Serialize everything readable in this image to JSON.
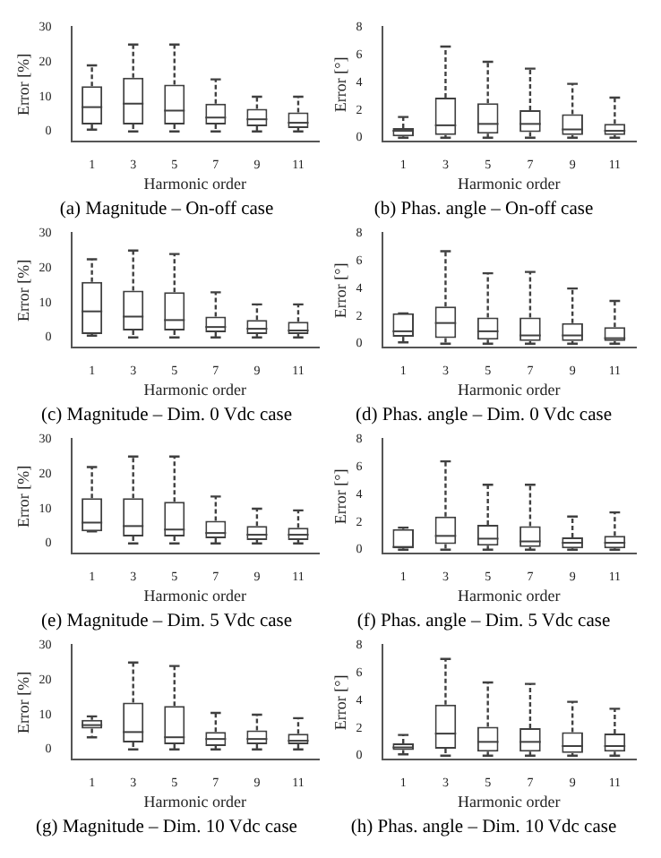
{
  "chart_data": [
    {
      "type": "box",
      "title": "(a) Magnitude – On-off case",
      "xlabel": "Harmonic order",
      "ylabel": "Error [%]",
      "categories": [
        "1",
        "3",
        "5",
        "7",
        "9",
        "11"
      ],
      "ylim": [
        -3,
        30
      ],
      "yticks": [
        0,
        10,
        20,
        30
      ],
      "series": [
        {
          "color": "#404040",
          "boxes": [
            {
              "low": 0.5,
              "q1": 2,
              "median": 7,
              "q3": 13,
              "high": 19
            },
            {
              "low": 0,
              "q1": 2,
              "median": 8,
              "q3": 15.5,
              "high": 25
            },
            {
              "low": 0,
              "q1": 2,
              "median": 6,
              "q3": 13.5,
              "high": 25
            },
            {
              "low": 0,
              "q1": 2,
              "median": 4,
              "q3": 8,
              "high": 15
            },
            {
              "low": 0,
              "q1": 1.5,
              "median": 3.5,
              "q3": 6.5,
              "high": 10
            },
            {
              "low": 0,
              "q1": 1,
              "median": 2.5,
              "q3": 5.5,
              "high": 10
            }
          ]
        }
      ]
    },
    {
      "type": "box",
      "title": "(b) Phas. angle – On-off case",
      "xlabel": "Harmonic order",
      "ylabel": "Error [°]",
      "categories": [
        "1",
        "3",
        "5",
        "7",
        "9",
        "11"
      ],
      "ylim": [
        -0.3,
        8
      ],
      "yticks": [
        0,
        2,
        4,
        6,
        8
      ],
      "series": [
        {
          "color": "#404040",
          "boxes": [
            {
              "low": 0,
              "q1": 0.1,
              "median": 0.5,
              "q3": 0.7,
              "high": 1.5
            },
            {
              "low": 0,
              "q1": 0.2,
              "median": 0.9,
              "q3": 2.9,
              "high": 6.6
            },
            {
              "low": 0,
              "q1": 0.3,
              "median": 1,
              "q3": 2.5,
              "high": 5.5
            },
            {
              "low": 0,
              "q1": 0.4,
              "median": 1,
              "q3": 2,
              "high": 5
            },
            {
              "low": 0,
              "q1": 0.2,
              "median": 0.6,
              "q3": 1.7,
              "high": 3.9
            },
            {
              "low": 0,
              "q1": 0.2,
              "median": 0.5,
              "q3": 1,
              "high": 2.9
            }
          ]
        }
      ]
    },
    {
      "type": "box",
      "title": "(c) Magnitude – Dim. 0 Vdc case",
      "xlabel": "Harmonic order",
      "ylabel": "Error [%]",
      "categories": [
        "1",
        "3",
        "5",
        "7",
        "9",
        "11"
      ],
      "ylim": [
        -3,
        30
      ],
      "yticks": [
        0,
        10,
        20,
        30
      ],
      "series": [
        {
          "color": "#404040",
          "boxes": [
            {
              "low": 0.5,
              "q1": 1,
              "median": 7.5,
              "q3": 16,
              "high": 22.5
            },
            {
              "low": 0,
              "q1": 2,
              "median": 6,
              "q3": 13.5,
              "high": 25
            },
            {
              "low": 0,
              "q1": 2,
              "median": 5,
              "q3": 13,
              "high": 24
            },
            {
              "low": 0,
              "q1": 1.5,
              "median": 3,
              "q3": 6,
              "high": 13
            },
            {
              "low": 0,
              "q1": 1,
              "median": 2.5,
              "q3": 5,
              "high": 9.5
            },
            {
              "low": 0,
              "q1": 1,
              "median": 2,
              "q3": 4.5,
              "high": 9.5
            }
          ]
        }
      ]
    },
    {
      "type": "box",
      "title": "(d) Phas. angle – Dim. 0 Vdc case",
      "xlabel": "Harmonic order",
      "ylabel": "Error [°]",
      "categories": [
        "1",
        "3",
        "5",
        "7",
        "9",
        "11"
      ],
      "ylim": [
        -0.3,
        8
      ],
      "yticks": [
        0,
        2,
        4,
        6,
        8
      ],
      "series": [
        {
          "color": "#404040",
          "boxes": [
            {
              "low": 0.1,
              "q1": 0.5,
              "median": 0.9,
              "q3": 2.2,
              "high": 2.2
            },
            {
              "low": 0,
              "q1": 0.4,
              "median": 1.5,
              "q3": 2.7,
              "high": 6.7
            },
            {
              "low": 0,
              "q1": 0.3,
              "median": 0.9,
              "q3": 1.9,
              "high": 5.1
            },
            {
              "low": 0,
              "q1": 0.2,
              "median": 0.6,
              "q3": 1.9,
              "high": 5.2
            },
            {
              "low": 0,
              "q1": 0.2,
              "median": 0.6,
              "q3": 1.5,
              "high": 4
            },
            {
              "low": 0,
              "q1": 0.2,
              "median": 0.4,
              "q3": 1.2,
              "high": 3.1
            }
          ]
        }
      ]
    },
    {
      "type": "box",
      "title": "(e) Magnitude – Dim. 5 Vdc case",
      "xlabel": "Harmonic order",
      "ylabel": "Error [%]",
      "categories": [
        "1",
        "3",
        "5",
        "7",
        "9",
        "11"
      ],
      "ylim": [
        -3,
        30
      ],
      "yticks": [
        0,
        10,
        20,
        30
      ],
      "series": [
        {
          "color": "#404040",
          "boxes": [
            {
              "low": 3.5,
              "q1": 3.5,
              "median": 6,
              "q3": 13,
              "high": 22
            },
            {
              "low": 0,
              "q1": 2,
              "median": 5,
              "q3": 13,
              "high": 25
            },
            {
              "low": 0,
              "q1": 2,
              "median": 4,
              "q3": 12,
              "high": 25
            },
            {
              "low": 0,
              "q1": 1.5,
              "median": 3,
              "q3": 6.5,
              "high": 13.5
            },
            {
              "low": 0,
              "q1": 1,
              "median": 2.5,
              "q3": 5,
              "high": 10
            },
            {
              "low": 0,
              "q1": 1,
              "median": 2.5,
              "q3": 4.5,
              "high": 9.5
            }
          ]
        }
      ]
    },
    {
      "type": "box",
      "title": "(f) Phas. angle – Dim. 5 Vdc case",
      "xlabel": "Harmonic order",
      "ylabel": "Error [°]",
      "categories": [
        "1",
        "3",
        "5",
        "7",
        "9",
        "11"
      ],
      "ylim": [
        -0.3,
        8
      ],
      "yticks": [
        0,
        2,
        4,
        6,
        8
      ],
      "series": [
        {
          "color": "#404040",
          "boxes": [
            {
              "low": 0,
              "q1": 0.1,
              "median": 0.2,
              "q3": 1.5,
              "high": 1.6
            },
            {
              "low": 0,
              "q1": 0.4,
              "median": 1,
              "q3": 2.4,
              "high": 6.4
            },
            {
              "low": 0,
              "q1": 0.3,
              "median": 0.8,
              "q3": 1.8,
              "high": 4.7
            },
            {
              "low": 0,
              "q1": 0.2,
              "median": 0.6,
              "q3": 1.7,
              "high": 4.7
            },
            {
              "low": 0,
              "q1": 0.1,
              "median": 0.5,
              "q3": 0.9,
              "high": 2.4
            },
            {
              "low": 0,
              "q1": 0.1,
              "median": 0.5,
              "q3": 1,
              "high": 2.7
            }
          ]
        }
      ]
    },
    {
      "type": "box",
      "title": "(g) Magnitude – Dim. 10 Vdc case",
      "xlabel": "Harmonic order",
      "ylabel": "Error [%]",
      "categories": [
        "1",
        "3",
        "5",
        "7",
        "9",
        "11"
      ],
      "ylim": [
        -3,
        30
      ],
      "yticks": [
        0,
        10,
        20,
        30
      ],
      "series": [
        {
          "color": "#404040",
          "boxes": [
            {
              "low": 3.5,
              "q1": 6,
              "median": 7,
              "q3": 8.5,
              "high": 9.5
            },
            {
              "low": 0,
              "q1": 2,
              "median": 5,
              "q3": 13.5,
              "high": 25
            },
            {
              "low": 0,
              "q1": 1.5,
              "median": 3.5,
              "q3": 12.5,
              "high": 24
            },
            {
              "low": 0,
              "q1": 1,
              "median": 3,
              "q3": 5,
              "high": 10.5
            },
            {
              "low": 0,
              "q1": 1.5,
              "median": 3,
              "q3": 5.5,
              "high": 10
            },
            {
              "low": 0,
              "q1": 1.5,
              "median": 2.5,
              "q3": 4.5,
              "high": 9
            }
          ]
        }
      ]
    },
    {
      "type": "box",
      "title": "(h) Phas. angle – Dim. 10 Vdc case",
      "xlabel": "Harmonic order",
      "ylabel": "Error [°]",
      "categories": [
        "1",
        "3",
        "5",
        "7",
        "9",
        "11"
      ],
      "ylim": [
        -0.3,
        8
      ],
      "yticks": [
        0,
        2,
        4,
        6,
        8
      ],
      "series": [
        {
          "color": "#404040",
          "boxes": [
            {
              "low": 0.1,
              "q1": 0.4,
              "median": 0.6,
              "q3": 0.9,
              "high": 1.5
            },
            {
              "low": 0,
              "q1": 0.5,
              "median": 1.6,
              "q3": 3.7,
              "high": 7
            },
            {
              "low": 0,
              "q1": 0.3,
              "median": 1,
              "q3": 2.1,
              "high": 5.3
            },
            {
              "low": 0,
              "q1": 0.3,
              "median": 1,
              "q3": 2,
              "high": 5.2
            },
            {
              "low": 0,
              "q1": 0.2,
              "median": 0.7,
              "q3": 1.7,
              "high": 3.9
            },
            {
              "low": 0,
              "q1": 0.3,
              "median": 0.7,
              "q3": 1.6,
              "high": 3.4
            }
          ]
        }
      ]
    }
  ]
}
